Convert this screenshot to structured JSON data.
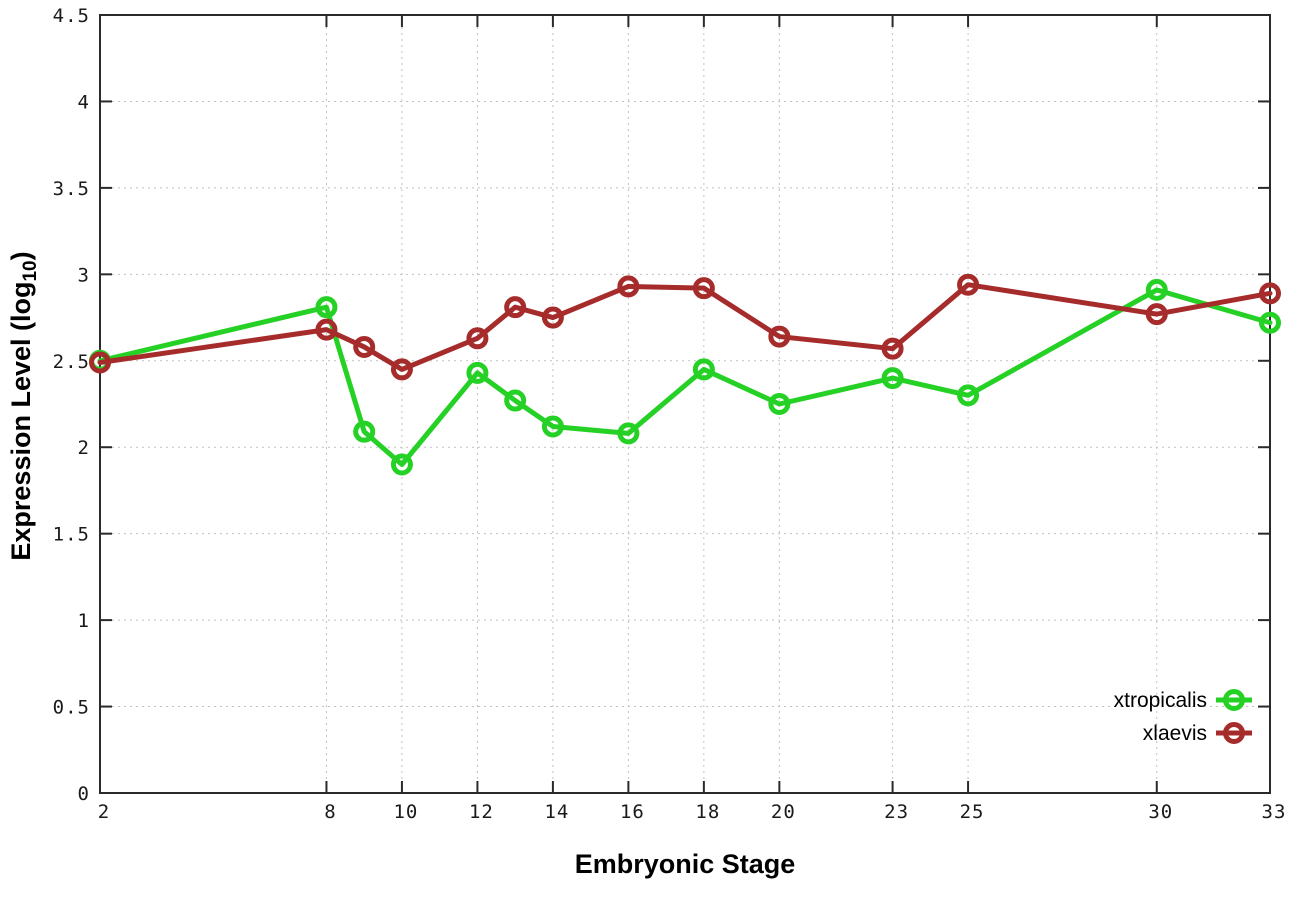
{
  "chart_data": {
    "type": "line",
    "x": [
      2,
      8,
      9,
      10,
      12,
      13,
      14,
      16,
      18,
      20,
      23,
      25,
      30,
      33
    ],
    "series": [
      {
        "name": "xtropicalis",
        "color": "#25d125",
        "values": [
          2.5,
          2.81,
          2.09,
          1.9,
          2.43,
          2.27,
          2.12,
          2.08,
          2.45,
          2.25,
          2.4,
          2.3,
          2.91,
          2.72
        ]
      },
      {
        "name": "xlaevis",
        "color": "#a62c2c",
        "values": [
          2.49,
          2.68,
          2.58,
          2.45,
          2.63,
          2.81,
          2.75,
          2.93,
          2.92,
          2.64,
          2.57,
          2.94,
          2.77,
          2.89
        ]
      }
    ],
    "xlabel": "Embryonic Stage",
    "ylabel": {
      "prefix": "Expression Level (log",
      "subscript": "10",
      "suffix": ")"
    },
    "xlim": [
      2,
      33
    ],
    "ylim": [
      0,
      4.5
    ],
    "xticks": [
      "2",
      "8",
      "10",
      "12",
      "14",
      "16",
      "18",
      "20",
      "23",
      "25",
      "30",
      "33"
    ],
    "yticks": [
      "0",
      "0.5",
      "1",
      "1.5",
      "2",
      "2.5",
      "3",
      "3.5",
      "4",
      "4.5"
    ],
    "grid": true,
    "legend_position": "bottom-right",
    "marker": "open-circle"
  },
  "style": {
    "background": "#ffffff",
    "grid_color": "#c2c2c2",
    "border_color": "#2a2a2a",
    "tick_color": "#2a2a2a"
  }
}
